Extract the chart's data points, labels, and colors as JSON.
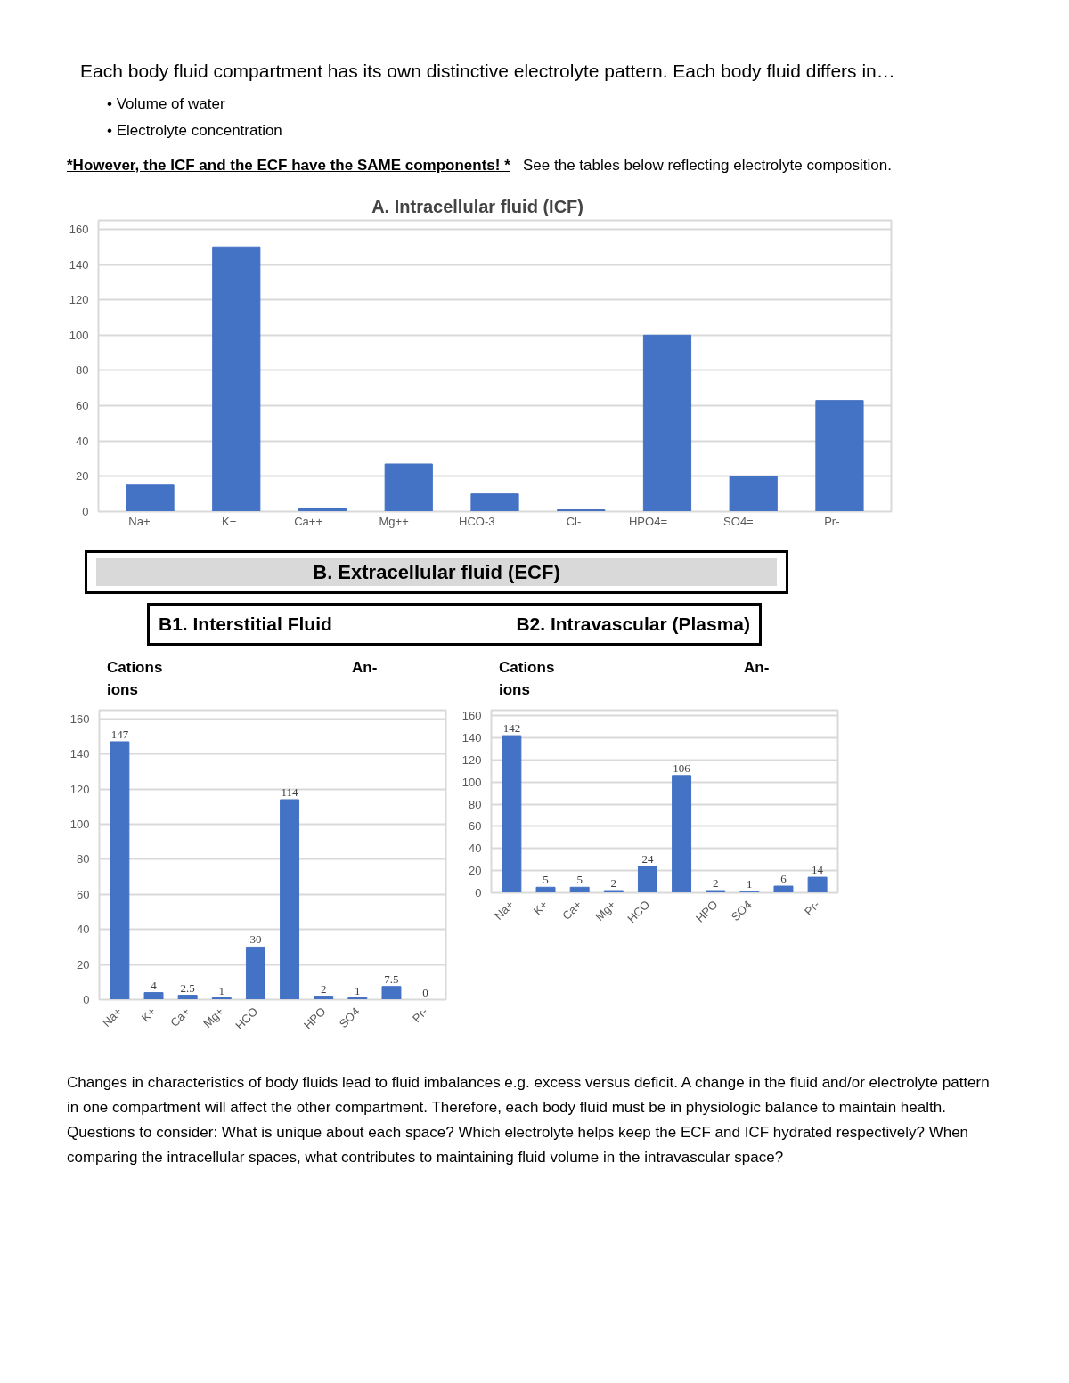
{
  "chart_data": [
    {
      "type": "bar",
      "title": "A.      Intracellular fluid   (ICF)",
      "annotations": [
        "Each body fluid compartment has its own distinctive electrolyte pattern.  Each body fluid differs in…",
        "•   Volume of water",
        "•   Electrolyte concentration",
        "*However, the ICF and the ECF have the SAME components! *",
        "See the tables below reflecting electrolyte composition."
      ],
      "categories": [
        "Na+",
        "K+",
        "Ca++",
        "Mg++",
        "HCO-3",
        "Cl-",
        "HPO4=",
        "SO4=",
        "Pr-"
      ],
      "values": [
        15,
        150,
        2,
        27,
        10,
        1,
        100,
        20,
        63
      ],
      "color": "#4472c4",
      "ylim": [
        0,
        165
      ],
      "yticks": [
        0,
        20,
        40,
        60,
        80,
        100,
        120,
        140,
        160
      ],
      "grid": "y"
    },
    {
      "type": "bar",
      "title": "B1. Interstitial Fluid",
      "subtitle": "B.        Extracellular fluid  (ECF)",
      "annotations": [
        "Cations",
        "ions",
        "An-"
      ],
      "categories": [
        "Na+",
        "K+",
        "Ca+",
        "Mg+",
        "HCO",
        null,
        "HPO",
        "SO4",
        null,
        "Pr-"
      ],
      "values": [
        147,
        4,
        2.5,
        1,
        30,
        114,
        2,
        1,
        7.5,
        0
      ],
      "color": "#4472c4",
      "data_labels": true,
      "ylim": [
        0,
        165
      ],
      "yticks": [
        0,
        20,
        40,
        60,
        80,
        100,
        120,
        140,
        160
      ],
      "grid": "y"
    },
    {
      "type": "bar",
      "title": "B2. Intravascular (Plasma)",
      "annotations": [
        "Cations",
        "ions",
        "An-",
        "Changes in characteristics of body fluids lead to fluid imbalances e.g. excess versus deficit. A change in the fluid and/or electrolyte pattern in one compartment will affect the other compartment.  Therefore, each body fluid must be in physiologic balance to maintain health. Questions to consider:  What is unique about each space?   Which electrolyte helps keep the ECF and ICF hydrated respectively? When comparing the intracellular spaces, what contributes to maintaining fluid volume in the intravascular space?"
      ],
      "categories": [
        "Na+",
        "K+",
        "Ca+",
        "Mg+",
        "HCO",
        null,
        "HPO",
        "SO4",
        null,
        "Pr-"
      ],
      "values": [
        142,
        5,
        5,
        2,
        24,
        106,
        2,
        1,
        6,
        14
      ],
      "color": "#4472c4",
      "data_labels": true,
      "ylim": [
        0,
        165
      ],
      "yticks": [
        0,
        20,
        40,
        60,
        80,
        100,
        120,
        140,
        160
      ],
      "grid": "y"
    }
  ]
}
